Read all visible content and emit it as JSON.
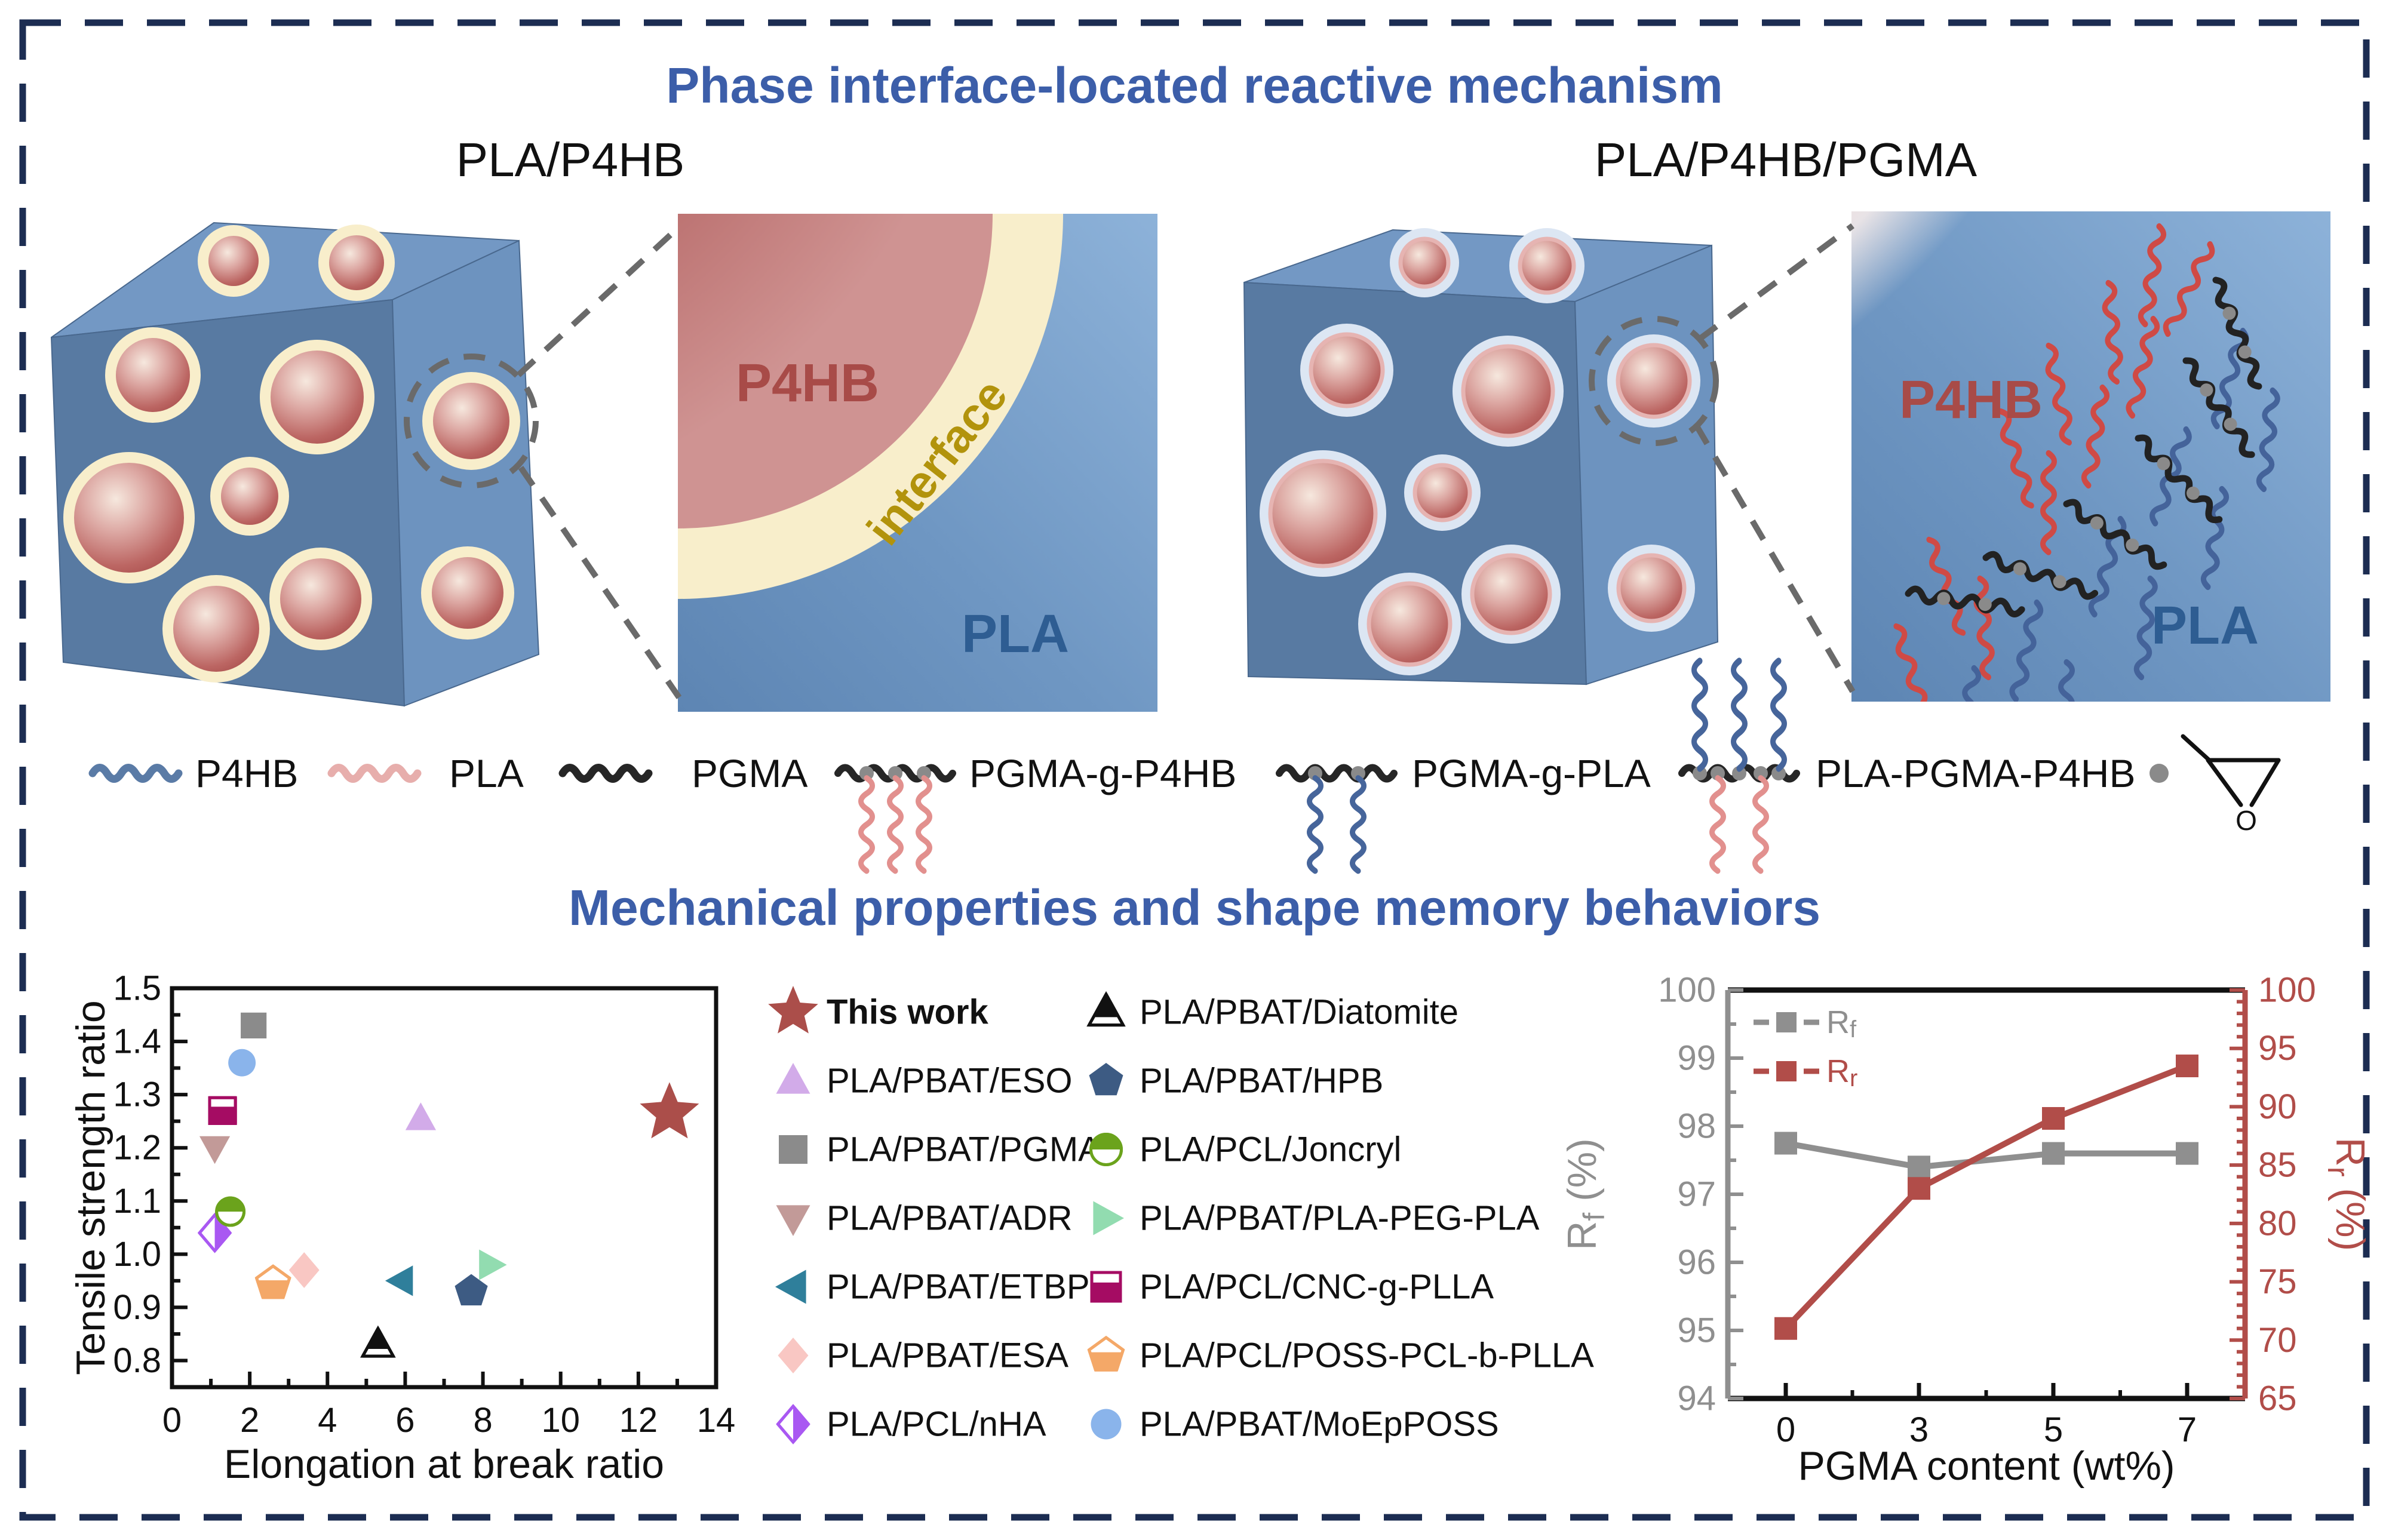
{
  "figure": {
    "section1_title": "Phase interface-located reactive mechanism",
    "section2_title": "Mechanical properties and shape memory behaviors",
    "title_color": "#3c5ea9",
    "border_color": "#1c2d52"
  },
  "mechanism": {
    "left_cube_label": "PLA/P4HB",
    "right_cube_label": "PLA/P4HB/PGMA",
    "left_panel": {
      "top_phase": "P4HB",
      "band_label": "interface",
      "bottom_phase": "PLA"
    },
    "right_panel": {
      "top_phase": "P4HB",
      "bottom_phase": "PLA"
    },
    "phase_colors": {
      "p4hb_text": "#a84b48",
      "pla_text": "#2e5d92",
      "interface_text": "#b2930c"
    }
  },
  "chain_legend": {
    "epoxide_label": "O",
    "items": [
      {
        "label": "P4HB",
        "symbol": "wave",
        "color": "#5a7ba6"
      },
      {
        "label": "PLA",
        "symbol": "wave",
        "color": "#e7aeac"
      },
      {
        "label": "PGMA",
        "symbol": "wave",
        "color": "#262626"
      },
      {
        "label": "PGMA-g-P4HB",
        "symbol": "graft-down",
        "backbone_color": "#262626",
        "graft_color": "#e2908e"
      },
      {
        "label": "PGMA-g-PLA",
        "symbol": "graft-down",
        "backbone_color": "#262626",
        "graft_color": "#46659b"
      },
      {
        "label": "PLA-PGMA-P4HB",
        "symbol": "graft-both",
        "backbone_color": "#262626",
        "up_color": "#46659b",
        "down_color": "#e2908e"
      },
      {
        "label": "",
        "symbol": "epoxide-group",
        "dot_color": "#8a8a8a"
      }
    ]
  },
  "chart_data": [
    {
      "type": "scatter",
      "title": "",
      "xlabel": "Elongation at break ratio",
      "ylabel": "Tensile strength ratio",
      "xlim": [
        0,
        14
      ],
      "ylim": [
        0.75,
        1.5
      ],
      "xticks": [
        0,
        2,
        4,
        6,
        8,
        10,
        12,
        14
      ],
      "yticks": [
        0.8,
        0.9,
        1.0,
        1.1,
        1.2,
        1.3,
        1.4,
        1.5
      ],
      "grid": false,
      "points": [
        {
          "label": "This work",
          "marker": "star",
          "color": "#ab4e4a",
          "x": 12.8,
          "y": 1.265
        },
        {
          "label": "PLA/PBAT/ESO",
          "marker": "triangle-up",
          "color": "#d2abe9",
          "x": 6.4,
          "y": 1.255
        },
        {
          "label": "PLA/PBAT/PGMA",
          "marker": "square",
          "color": "#8b8b8b",
          "x": 2.1,
          "y": 1.43
        },
        {
          "label": "PLA/PBAT/ADR",
          "marker": "triangle-down",
          "color": "#c29a98",
          "x": 1.1,
          "y": 1.2
        },
        {
          "label": "PLA/PBAT/ETBP",
          "marker": "triangle-left",
          "color": "#2f7f9b",
          "x": 5.9,
          "y": 0.95
        },
        {
          "label": "PLA/PBAT/ESA",
          "marker": "diamond",
          "color": "#f9c7c3",
          "x": 3.4,
          "y": 0.97
        },
        {
          "label": "PLA/PCL/nHA",
          "marker": "diamond-half-right",
          "color": "#a958f2",
          "x": 1.1,
          "y": 1.04
        },
        {
          "label": "PLA/PBAT/Diatomite",
          "marker": "triangle-half-top",
          "color": "#111111",
          "x": 5.3,
          "y": 0.83
        },
        {
          "label": "PLA/PBAT/HPB",
          "marker": "pentagon",
          "color": "#3d5b83",
          "x": 7.7,
          "y": 0.93
        },
        {
          "label": "PLA/PCL/Joncryl",
          "marker": "circle-half-top",
          "color": "#6ba31c",
          "x": 1.5,
          "y": 1.08
        },
        {
          "label": "PLA/PBAT/PLA-PEG-PLA",
          "marker": "triangle-right",
          "color": "#92dcb0",
          "x": 8.2,
          "y": 0.98
        },
        {
          "label": "PLA/PCL/CNC-g-PLLA",
          "marker": "square-half-bottom",
          "color": "#a50c63",
          "x": 1.3,
          "y": 1.27
        },
        {
          "label": "PLA/PCL/POSS-PCL-b-PLLA",
          "marker": "pentagon-half-bottom",
          "color": "#f4a868",
          "x": 2.6,
          "y": 0.945
        },
        {
          "label": "PLA/PBAT/MoEpPOSS",
          "marker": "circle",
          "color": "#8ab4eb",
          "x": 1.8,
          "y": 1.36
        }
      ],
      "legend_columns": [
        [
          0,
          1,
          2,
          3,
          4,
          5,
          6
        ],
        [
          7,
          8,
          9,
          10,
          11,
          12,
          13
        ]
      ]
    },
    {
      "type": "line",
      "xlabel": "PGMA content (wt%)",
      "categories": [
        "0",
        "3",
        "5",
        "7"
      ],
      "left_axis": {
        "label_main": "R",
        "label_sub": "f",
        "label_unit": " (%)",
        "range": [
          94,
          100
        ],
        "tick_step": 1,
        "color": "#8f8f8f"
      },
      "right_axis": {
        "label_main": "R",
        "label_sub": "r",
        "label_unit": " (%)",
        "range": [
          65,
          100
        ],
        "tick_step": 5,
        "color": "#b14d49"
      },
      "legend_position": "top-left",
      "series": [
        {
          "name_main": "R",
          "name_sub": "f",
          "axis": "left",
          "color": "#8f8f8f",
          "values": [
            97.75,
            97.4,
            97.6,
            97.6
          ]
        },
        {
          "name_main": "R",
          "name_sub": "r",
          "axis": "right",
          "color": "#b14d49",
          "values": [
            71,
            83,
            89,
            93.5
          ]
        }
      ]
    }
  ]
}
